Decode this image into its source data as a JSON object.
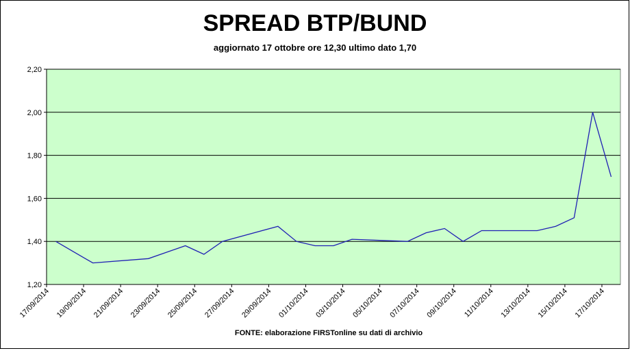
{
  "chart_data": {
    "type": "line",
    "title": "SPREAD BTP/BUND",
    "subtitle": "aggiornato 17 ottobre ore 12,30 ultimo dato 1,70",
    "source": "FONTE: elaborazione FIRSTonline su dati di archivio",
    "x": [
      "17/09/2014",
      "18/09/2014",
      "19/09/2014",
      "22/09/2014",
      "23/09/2014",
      "24/09/2014",
      "25/09/2014",
      "26/09/2014",
      "29/09/2014",
      "30/09/2014",
      "01/10/2014",
      "02/10/2014",
      "03/10/2014",
      "06/10/2014",
      "07/10/2014",
      "08/10/2014",
      "09/10/2014",
      "10/10/2014",
      "13/10/2014",
      "14/10/2014",
      "15/10/2014",
      "16/10/2014",
      "17/10/2014"
    ],
    "values": [
      1.4,
      1.35,
      1.3,
      1.32,
      1.35,
      1.38,
      1.34,
      1.4,
      1.47,
      1.4,
      1.38,
      1.38,
      1.41,
      1.4,
      1.44,
      1.46,
      1.4,
      1.45,
      1.45,
      1.47,
      1.51,
      2.0,
      1.7
    ],
    "color": "#1f1fb4",
    "xlim": [
      "17/09/2014",
      "18/10/2014"
    ],
    "xticks": [
      "17/09/2014",
      "19/09/2014",
      "21/09/2014",
      "23/09/2014",
      "25/09/2014",
      "27/09/2014",
      "29/09/2014",
      "01/10/2014",
      "03/10/2014",
      "05/10/2014",
      "07/10/2014",
      "09/10/2014",
      "11/10/2014",
      "13/10/2014",
      "15/10/2014",
      "17/10/2014"
    ],
    "ylim": [
      1.2,
      2.2
    ],
    "yticks": [
      {
        "value": 1.2,
        "label": "1,20"
      },
      {
        "value": 1.4,
        "label": "1,40"
      },
      {
        "value": 1.6,
        "label": "1,60"
      },
      {
        "value": 1.8,
        "label": "1,80"
      },
      {
        "value": 2.0,
        "label": "2,00"
      },
      {
        "value": 2.2,
        "label": "2,20"
      }
    ],
    "grid": true,
    "plot_background": "#ccffcc"
  }
}
